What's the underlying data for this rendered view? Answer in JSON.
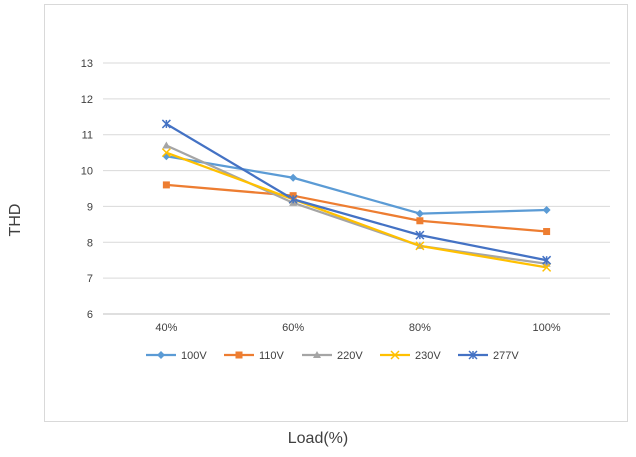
{
  "chart_data": {
    "type": "line",
    "title": "",
    "xlabel": "Load(%)",
    "ylabel": "THD",
    "categories": [
      "40%",
      "60%",
      "80%",
      "100%"
    ],
    "ylim": [
      6,
      13
    ],
    "yticks": [
      "6",
      "7",
      "8",
      "9",
      "10",
      "11",
      "12",
      "13"
    ],
    "grid": true,
    "legend_position": "bottom",
    "series": [
      {
        "name": "100V",
        "values": [
          10.4,
          9.8,
          8.8,
          8.9
        ],
        "color": "#5b9bd5",
        "marker": "diamond"
      },
      {
        "name": "110V",
        "values": [
          9.6,
          9.3,
          8.6,
          8.3
        ],
        "color": "#ed7d31",
        "marker": "square"
      },
      {
        "name": "220V",
        "values": [
          10.7,
          9.1,
          7.9,
          7.4
        ],
        "color": "#a5a5a5",
        "marker": "triangle"
      },
      {
        "name": "230V",
        "values": [
          10.5,
          9.2,
          7.9,
          7.3
        ],
        "color": "#ffc000",
        "marker": "x"
      },
      {
        "name": "277V",
        "values": [
          11.3,
          9.2,
          8.2,
          7.5
        ],
        "color": "#4472c4",
        "marker": "star"
      }
    ]
  }
}
